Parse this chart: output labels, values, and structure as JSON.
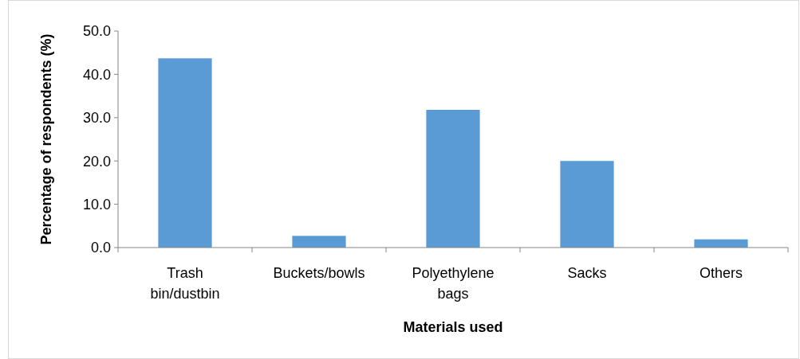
{
  "chart_data": {
    "type": "bar",
    "xlabel": "Materials used",
    "ylabel": "Percentage of respondents (%)",
    "categories": [
      "Trash bin/dustbin",
      "Buckets/bowls",
      "Polyethylene bags",
      "Sacks",
      "Others"
    ],
    "values": [
      43.7,
      2.7,
      31.8,
      20.0,
      1.9
    ],
    "color": "#5b9bd5",
    "ylim": [
      0,
      50
    ],
    "yticks": [
      {
        "value": 0,
        "label": "0.0"
      },
      {
        "value": 10,
        "label": "10.0"
      },
      {
        "value": 20,
        "label": "20.0"
      },
      {
        "value": 30,
        "label": "30.0"
      },
      {
        "value": 40,
        "label": "40.0"
      },
      {
        "value": 50,
        "label": "50.0"
      }
    ],
    "grid": false
  }
}
